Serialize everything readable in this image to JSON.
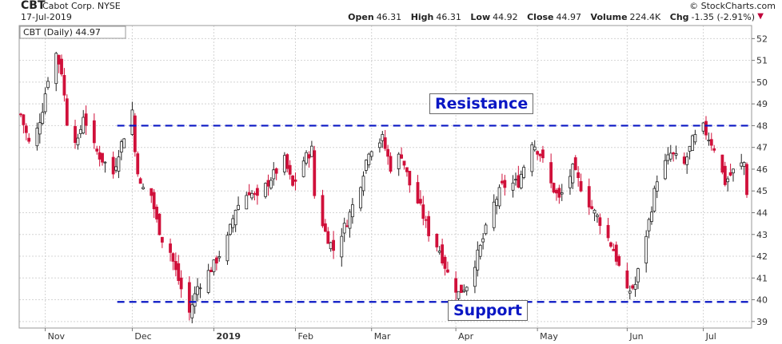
{
  "header": {
    "ticker": "CBT",
    "company": "Cabot Corp. NYSE",
    "date": "17-Jul-2019",
    "credit": "© StockCharts.com",
    "legend": "CBT (Daily) 44.97",
    "open_label": "Open",
    "open": "46.31",
    "high_label": "High",
    "high": "46.31",
    "low_label": "Low",
    "low": "44.92",
    "close_label": "Close",
    "close": "44.97",
    "volume_label": "Volume",
    "volume": "224.4K",
    "chg_label": "Chg",
    "chg": "-1.35 (-2.91%)",
    "chg_icon": "down-triangle-icon"
  },
  "annotations": {
    "resistance": "Resistance",
    "support": "Support"
  },
  "colors": {
    "up": "#222222",
    "down": "#d0103a",
    "line": "#0a17c4",
    "grid": "#d4d4d4"
  },
  "chart_data": {
    "type": "candlestick",
    "title": "CBT (Daily) 44.97",
    "xlabel": "",
    "ylabel": "",
    "ylim": [
      38.7,
      52.6
    ],
    "yticks": [
      39,
      40,
      41,
      42,
      43,
      44,
      45,
      46,
      47,
      48,
      49,
      50,
      51,
      52
    ],
    "grid": true,
    "x_range": [
      "2018-10-23",
      "2019-07-17"
    ],
    "month_labels": [
      {
        "label": "Nov",
        "date": "2018-11-01"
      },
      {
        "label": "Dec",
        "date": "2018-12-03"
      },
      {
        "label": "2019",
        "date": "2019-01-02"
      },
      {
        "label": "Feb",
        "date": "2019-02-01"
      },
      {
        "label": "Mar",
        "date": "2019-03-01"
      },
      {
        "label": "Apr",
        "date": "2019-04-01"
      },
      {
        "label": "May",
        "date": "2019-05-01"
      },
      {
        "label": "Jun",
        "date": "2019-06-03"
      },
      {
        "label": "Jul",
        "date": "2019-07-01"
      }
    ],
    "closes": [
      {
        "date": "2018-10-23",
        "close": 48.5
      },
      {
        "date": "2018-10-26",
        "close": 47.2
      },
      {
        "date": "2018-10-29",
        "close": 47.8
      },
      {
        "date": "2018-10-31",
        "close": 48.8
      },
      {
        "date": "2018-11-02",
        "close": 50.2
      },
      {
        "date": "2018-11-05",
        "close": 51.3
      },
      {
        "date": "2018-11-07",
        "close": 50.5
      },
      {
        "date": "2018-11-09",
        "close": 48.2
      },
      {
        "date": "2018-11-13",
        "close": 47.2
      },
      {
        "date": "2018-11-15",
        "close": 48.5
      },
      {
        "date": "2018-11-19",
        "close": 47.0
      },
      {
        "date": "2018-11-21",
        "close": 46.6
      },
      {
        "date": "2018-11-26",
        "close": 45.8
      },
      {
        "date": "2018-11-28",
        "close": 46.8
      },
      {
        "date": "2018-12-03",
        "close": 48.7
      },
      {
        "date": "2018-12-04",
        "close": 46.8
      },
      {
        "date": "2018-12-06",
        "close": 45.2
      },
      {
        "date": "2018-12-10",
        "close": 44.8
      },
      {
        "date": "2018-12-12",
        "close": 43.6
      },
      {
        "date": "2018-12-14",
        "close": 42.8
      },
      {
        "date": "2018-12-17",
        "close": 42.2
      },
      {
        "date": "2018-12-19",
        "close": 41.3
      },
      {
        "date": "2018-12-21",
        "close": 40.5
      },
      {
        "date": "2018-12-24",
        "close": 39.4
      },
      {
        "date": "2018-12-27",
        "close": 40.6
      },
      {
        "date": "2019-01-02",
        "close": 41.6
      },
      {
        "date": "2019-01-07",
        "close": 42.8
      },
      {
        "date": "2019-01-10",
        "close": 44.2
      },
      {
        "date": "2019-01-15",
        "close": 45.0
      },
      {
        "date": "2019-01-18",
        "close": 44.6
      },
      {
        "date": "2019-01-23",
        "close": 45.6
      },
      {
        "date": "2019-01-28",
        "close": 46.4
      },
      {
        "date": "2019-01-31",
        "close": 45.2
      },
      {
        "date": "2019-02-04",
        "close": 46.4
      },
      {
        "date": "2019-02-07",
        "close": 46.9
      },
      {
        "date": "2019-02-08",
        "close": 44.8
      },
      {
        "date": "2019-02-12",
        "close": 43.1
      },
      {
        "date": "2019-02-15",
        "close": 42.3
      },
      {
        "date": "2019-02-20",
        "close": 43.6
      },
      {
        "date": "2019-02-25",
        "close": 45.4
      },
      {
        "date": "2019-02-28",
        "close": 46.9
      },
      {
        "date": "2019-03-05",
        "close": 47.4
      },
      {
        "date": "2019-03-08",
        "close": 46.1
      },
      {
        "date": "2019-03-12",
        "close": 46.7
      },
      {
        "date": "2019-03-15",
        "close": 45.3
      },
      {
        "date": "2019-03-19",
        "close": 44.2
      },
      {
        "date": "2019-03-22",
        "close": 43.1
      },
      {
        "date": "2019-03-26",
        "close": 42.3
      },
      {
        "date": "2019-03-29",
        "close": 41.2
      },
      {
        "date": "2019-04-02",
        "close": 40.3
      },
      {
        "date": "2019-04-05",
        "close": 40.7
      },
      {
        "date": "2019-04-10",
        "close": 42.4
      },
      {
        "date": "2019-04-15",
        "close": 44.4
      },
      {
        "date": "2019-04-18",
        "close": 45.2
      },
      {
        "date": "2019-04-24",
        "close": 45.4
      },
      {
        "date": "2019-04-29",
        "close": 47.3
      },
      {
        "date": "2019-05-02",
        "close": 46.7
      },
      {
        "date": "2019-05-06",
        "close": 45.3
      },
      {
        "date": "2019-05-09",
        "close": 44.6
      },
      {
        "date": "2019-05-14",
        "close": 46.0
      },
      {
        "date": "2019-05-17",
        "close": 45.2
      },
      {
        "date": "2019-05-21",
        "close": 44.2
      },
      {
        "date": "2019-05-24",
        "close": 43.6
      },
      {
        "date": "2019-05-29",
        "close": 42.3
      },
      {
        "date": "2019-06-03",
        "close": 40.3
      },
      {
        "date": "2019-06-06",
        "close": 40.7
      },
      {
        "date": "2019-06-11",
        "close": 43.6
      },
      {
        "date": "2019-06-14",
        "close": 45.6
      },
      {
        "date": "2019-06-19",
        "close": 46.7
      },
      {
        "date": "2019-06-24",
        "close": 46.2
      },
      {
        "date": "2019-06-27",
        "close": 47.3
      },
      {
        "date": "2019-07-01",
        "close": 47.9
      },
      {
        "date": "2019-07-05",
        "close": 47.0
      },
      {
        "date": "2019-07-09",
        "close": 45.4
      },
      {
        "date": "2019-07-12",
        "close": 45.9
      },
      {
        "date": "2019-07-16",
        "close": 46.3
      },
      {
        "date": "2019-07-17",
        "close": 44.97
      }
    ],
    "levels": [
      {
        "name": "Resistance",
        "value": 48.0
      },
      {
        "name": "Support",
        "value": 39.9
      }
    ]
  }
}
